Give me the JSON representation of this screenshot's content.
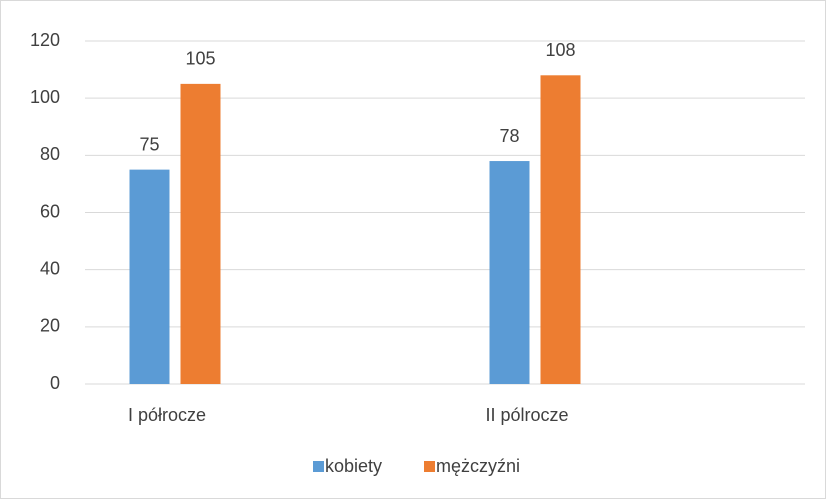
{
  "chart_data": {
    "type": "bar",
    "categories": [
      "I półrocze",
      "II pólrocze"
    ],
    "series": [
      {
        "name": "kobiety",
        "color": "#5b9bd5",
        "values": [
          75,
          78
        ]
      },
      {
        "name": "mężczyźni",
        "color": "#ed7d31",
        "values": [
          105,
          108
        ]
      }
    ],
    "ylim": [
      0,
      120
    ],
    "yticks": [
      0,
      20,
      40,
      60,
      80,
      100,
      120
    ],
    "grid": true,
    "legend": "bottom"
  }
}
